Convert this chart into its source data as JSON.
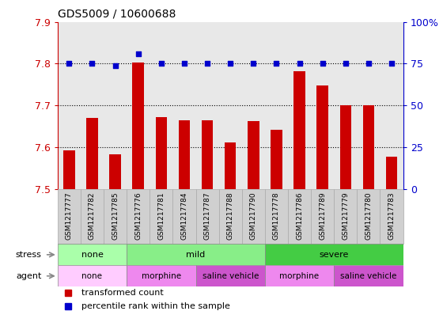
{
  "title": "GDS5009 / 10600688",
  "samples": [
    "GSM1217777",
    "GSM1217782",
    "GSM1217785",
    "GSM1217776",
    "GSM1217781",
    "GSM1217784",
    "GSM1217787",
    "GSM1217788",
    "GSM1217790",
    "GSM1217778",
    "GSM1217786",
    "GSM1217789",
    "GSM1217779",
    "GSM1217780",
    "GSM1217783"
  ],
  "transformed_count": [
    7.593,
    7.67,
    7.583,
    7.803,
    7.672,
    7.665,
    7.665,
    7.612,
    7.663,
    7.642,
    7.782,
    7.748,
    7.7,
    7.7,
    7.577
  ],
  "percentile_rank": [
    75,
    75,
    74,
    81,
    75,
    75,
    75,
    75,
    75,
    75,
    75,
    75,
    75,
    75,
    75
  ],
  "ymin": 7.5,
  "ymax": 7.9,
  "yticks": [
    7.5,
    7.6,
    7.7,
    7.8,
    7.9
  ],
  "right_yticks": [
    0,
    25,
    50,
    75,
    100
  ],
  "right_ytick_labels": [
    "0",
    "25",
    "50",
    "75",
    "100%"
  ],
  "bar_color": "#cc0000",
  "dot_color": "#0000cc",
  "dot_size": 25,
  "stress_groups": [
    {
      "label": "none",
      "start": 0,
      "end": 3,
      "color": "#aaffaa"
    },
    {
      "label": "mild",
      "start": 3,
      "end": 9,
      "color": "#88ee88"
    },
    {
      "label": "severe",
      "start": 9,
      "end": 15,
      "color": "#44cc44"
    }
  ],
  "agent_groups": [
    {
      "label": "none",
      "start": 0,
      "end": 3,
      "color": "#ffccff"
    },
    {
      "label": "morphine",
      "start": 3,
      "end": 6,
      "color": "#ee88ee"
    },
    {
      "label": "saline vehicle",
      "start": 6,
      "end": 9,
      "color": "#cc55cc"
    },
    {
      "label": "morphine",
      "start": 9,
      "end": 12,
      "color": "#ee88ee"
    },
    {
      "label": "saline vehicle",
      "start": 12,
      "end": 15,
      "color": "#cc55cc"
    }
  ],
  "legend_items": [
    {
      "label": "transformed count",
      "color": "#cc0000"
    },
    {
      "label": "percentile rank within the sample",
      "color": "#0000cc"
    }
  ],
  "tick_label_color": "#cc0000",
  "right_tick_label_color": "#0000cc",
  "background_color": "#ffffff",
  "plot_bg_color": "#ffffff",
  "grid_color": "#000000",
  "bar_width": 0.5,
  "plot_face_color": "#e8e8e8",
  "xtick_bg_color": "#d0d0d0"
}
